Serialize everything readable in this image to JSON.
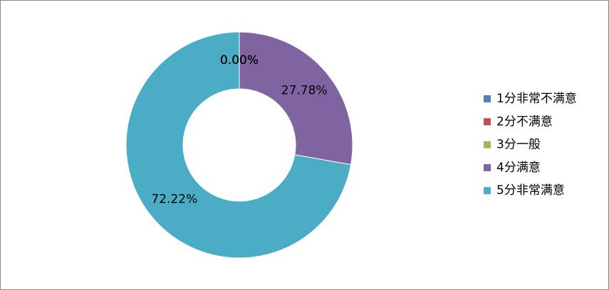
{
  "chart_data": {
    "type": "donut",
    "categories": [
      "1分非常不满意",
      "2分不满意",
      "3分一般",
      "4分满意",
      "5分非常满意"
    ],
    "values": [
      0,
      0,
      0,
      27.78,
      72.22
    ],
    "value_labels": [
      "0.00%",
      "0.00%",
      "0.00%",
      "27.78%",
      "72.22%"
    ],
    "colors": [
      "#4f81bd",
      "#c0504d",
      "#9bbb59",
      "#8064a2",
      "#4bacc6"
    ],
    "legend": "right"
  }
}
